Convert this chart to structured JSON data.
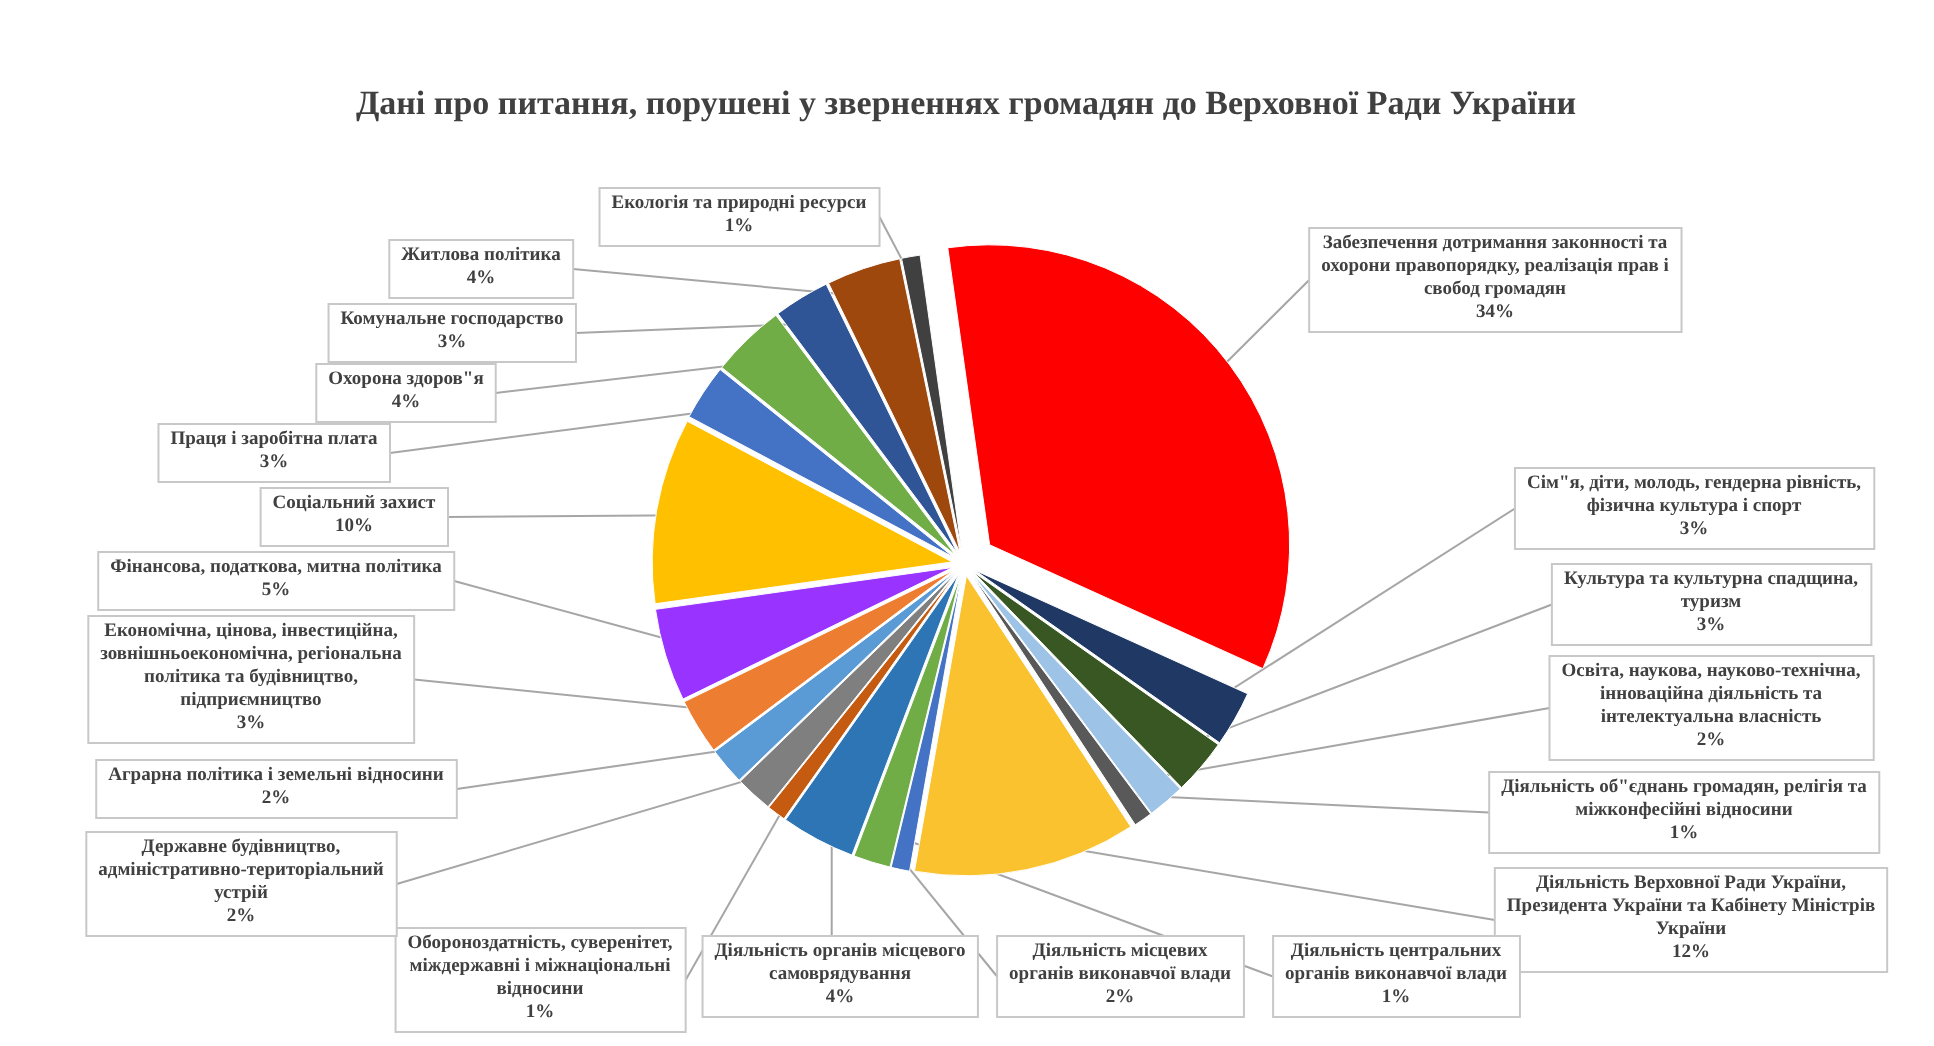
{
  "chart_data": {
    "type": "pie",
    "title": "Дані про питання, порушені у зверненнях громадян до Верховної Ради України",
    "categories": [
      "Забезпечення дотримання законності та охорони правопорядку, реалізація прав і свобод громадян",
      "Сім\"я, діти, молодь, гендерна рівність, фізична культура і спорт",
      "Культура та культурна спадщина, туризм",
      "Освіта, наукова, науково-технічна, інноваційна діяльність та інтелектуальна власність",
      "Діяльність об\"єднань громадян, релігія та міжконфесійні відносини",
      "Діяльність Верховної Ради України, Президента України та Кабінету Міністрів України",
      "Діяльність центральних органів виконавчої влади",
      "Діяльність місцевих органів виконавчої влади",
      "Діяльність органів місцевого самоврядування",
      "Обороноздатність, суверенітет, міждержавні і міжнаціональні відносини",
      "Державне будівництво, адміністративно-територіальний устрій",
      "Аграрна політика і земельні відносини",
      "Економічна, цінова, інвестиційна, зовнішньоекономічна, регіональна політика та будівництво, підприємництво",
      "Фінансова, податкова, митна політика",
      "Соціальний захист",
      "Праця і заробітна плата",
      "Охорона здоров\"я",
      "Комунальне господарство",
      "Житлова політика",
      "Екологія та природні ресурси"
    ],
    "values": [
      34,
      3,
      3,
      2,
      1,
      12,
      1,
      2,
      4,
      1,
      2,
      2,
      3,
      5,
      10,
      3,
      4,
      3,
      4,
      1
    ],
    "value_labels": [
      "34%",
      "3%",
      "3%",
      "2%",
      "1%",
      "12%",
      "1%",
      "2%",
      "4%",
      "1%",
      "2%",
      "2%",
      "3%",
      "5%",
      "10%",
      "3%",
      "4%",
      "3%",
      "4%",
      "1%"
    ],
    "colors": [
      "#ff0000",
      "#203864",
      "#385723",
      "#9dc3e6",
      "#595959",
      "#f9c22e",
      "#4472c4",
      "#70ad47",
      "#2e75b6",
      "#c55a11",
      "#7f7f7f",
      "#5b9bd5",
      "#ed7d31",
      "#9933ff",
      "#ffc000",
      "#4472c4",
      "#70ad47",
      "#2f5597",
      "#9e480e",
      "#404040"
    ]
  }
}
